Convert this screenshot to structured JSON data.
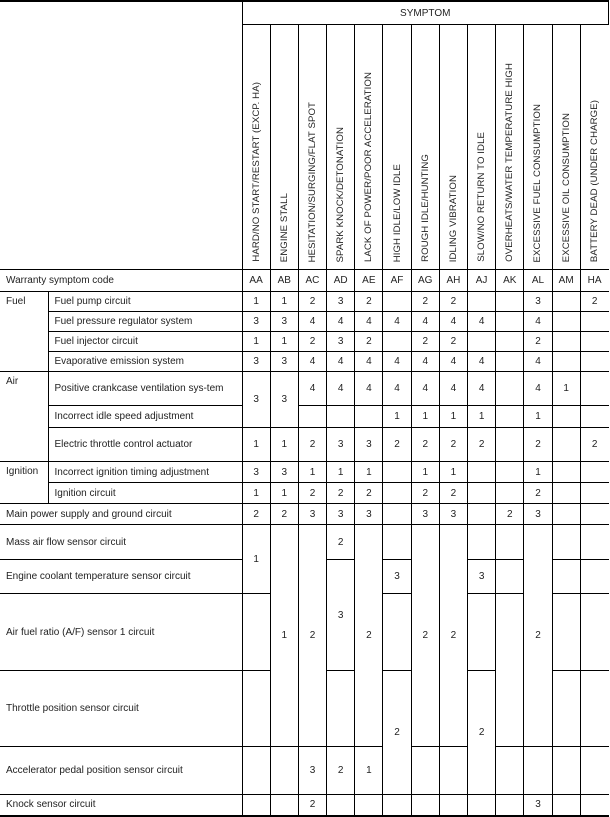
{
  "header": {
    "symptom": "SYMPTOM",
    "warranty_label": "Warranty symptom code",
    "symptoms": [
      "HARD/NO START/RESTART (EXCP. HA)",
      "ENGINE STALL",
      "HESITATION/SURGING/FLAT SPOT",
      "SPARK KNOCK/DETONATION",
      "LACK OF POWER/POOR ACCELERATION",
      "HIGH IDLE/LOW IDLE",
      "ROUGH IDLE/HUNTING",
      "IDLING VIBRATION",
      "SLOW/NO RETURN TO IDLE",
      "OVERHEATS/WATER TEMPERATURE HIGH",
      "EXCESSIVE FUEL CONSUMPTION",
      "EXCESSIVE OIL CONSUMPTION",
      "BATTERY DEAD (UNDER CHARGE)"
    ],
    "codes": [
      "AA",
      "AB",
      "AC",
      "AD",
      "AE",
      "AF",
      "AG",
      "AH",
      "AJ",
      "AK",
      "AL",
      "AM",
      "HA"
    ]
  },
  "categories": [
    "Fuel",
    "Air",
    "Ignition"
  ],
  "rows": [
    {
      "label": "Fuel pump circuit",
      "values": [
        "1",
        "1",
        "2",
        "3",
        "2",
        "",
        "2",
        "2",
        "",
        "",
        "3",
        "",
        "2"
      ]
    },
    {
      "label": "Fuel pressure regulator system",
      "values": [
        "3",
        "3",
        "4",
        "4",
        "4",
        "4",
        "4",
        "4",
        "4",
        "",
        "4",
        "",
        ""
      ]
    },
    {
      "label": "Fuel injector circuit",
      "values": [
        "1",
        "1",
        "2",
        "3",
        "2",
        "",
        "2",
        "2",
        "",
        "",
        "2",
        "",
        ""
      ]
    },
    {
      "label": "Evaporative emission system",
      "values": [
        "3",
        "3",
        "4",
        "4",
        "4",
        "4",
        "4",
        "4",
        "4",
        "",
        "4",
        "",
        ""
      ]
    },
    {
      "label": "Positive crankcase ventilation sys-tem",
      "values": [
        "3",
        "3",
        "4",
        "4",
        "4",
        "4",
        "4",
        "4",
        "4",
        "",
        "4",
        "1",
        ""
      ]
    },
    {
      "label": "Incorrect idle speed adjustment",
      "values": [
        null,
        null,
        "",
        "",
        "",
        "1",
        "1",
        "1",
        "1",
        "",
        "1",
        "",
        ""
      ]
    },
    {
      "label": "Electric throttle control actuator",
      "values": [
        "1",
        "1",
        "2",
        "3",
        "3",
        "2",
        "2",
        "2",
        "2",
        "",
        "2",
        "",
        "2"
      ]
    },
    {
      "label": "Incorrect ignition timing adjustment",
      "values": [
        "3",
        "3",
        "1",
        "1",
        "1",
        "",
        "1",
        "1",
        "",
        "",
        "1",
        "",
        ""
      ]
    },
    {
      "label": "Ignition circuit",
      "values": [
        "1",
        "1",
        "2",
        "2",
        "2",
        "",
        "2",
        "2",
        "",
        "",
        "2",
        "",
        ""
      ]
    },
    {
      "label": "Main power supply and ground circuit",
      "values": [
        "2",
        "2",
        "3",
        "3",
        "3",
        "",
        "3",
        "3",
        "",
        "2",
        "3",
        "",
        ""
      ]
    },
    {
      "label": "Mass air flow sensor circuit",
      "values": [
        "1",
        "1",
        "2",
        "2",
        "2",
        "",
        "2",
        "2",
        "",
        "",
        "2",
        "",
        ""
      ]
    },
    {
      "label": "Engine coolant temperature sensor circuit",
      "values": [
        null,
        null,
        null,
        "3",
        null,
        "3",
        null,
        null,
        "3",
        "",
        null,
        "",
        ""
      ]
    },
    {
      "label": "Air fuel ratio (A/F) sensor 1 circuit",
      "values": [
        "",
        null,
        null,
        null,
        null,
        "",
        null,
        null,
        "",
        "",
        null,
        "",
        ""
      ]
    },
    {
      "label": "Throttle position sensor circuit",
      "values": [
        "",
        null,
        null,
        "",
        null,
        "2",
        null,
        null,
        "2",
        null,
        null,
        "",
        ""
      ]
    },
    {
      "label": "Accelerator pedal position sensor circuit",
      "values": [
        "",
        "",
        "3",
        "2",
        "1",
        null,
        "",
        "",
        null,
        "",
        "",
        "",
        ""
      ]
    },
    {
      "label": "Knock sensor circuit",
      "values": [
        "",
        "",
        "2",
        "",
        "",
        "",
        "",
        "",
        "",
        "",
        "3",
        "",
        ""
      ]
    }
  ]
}
